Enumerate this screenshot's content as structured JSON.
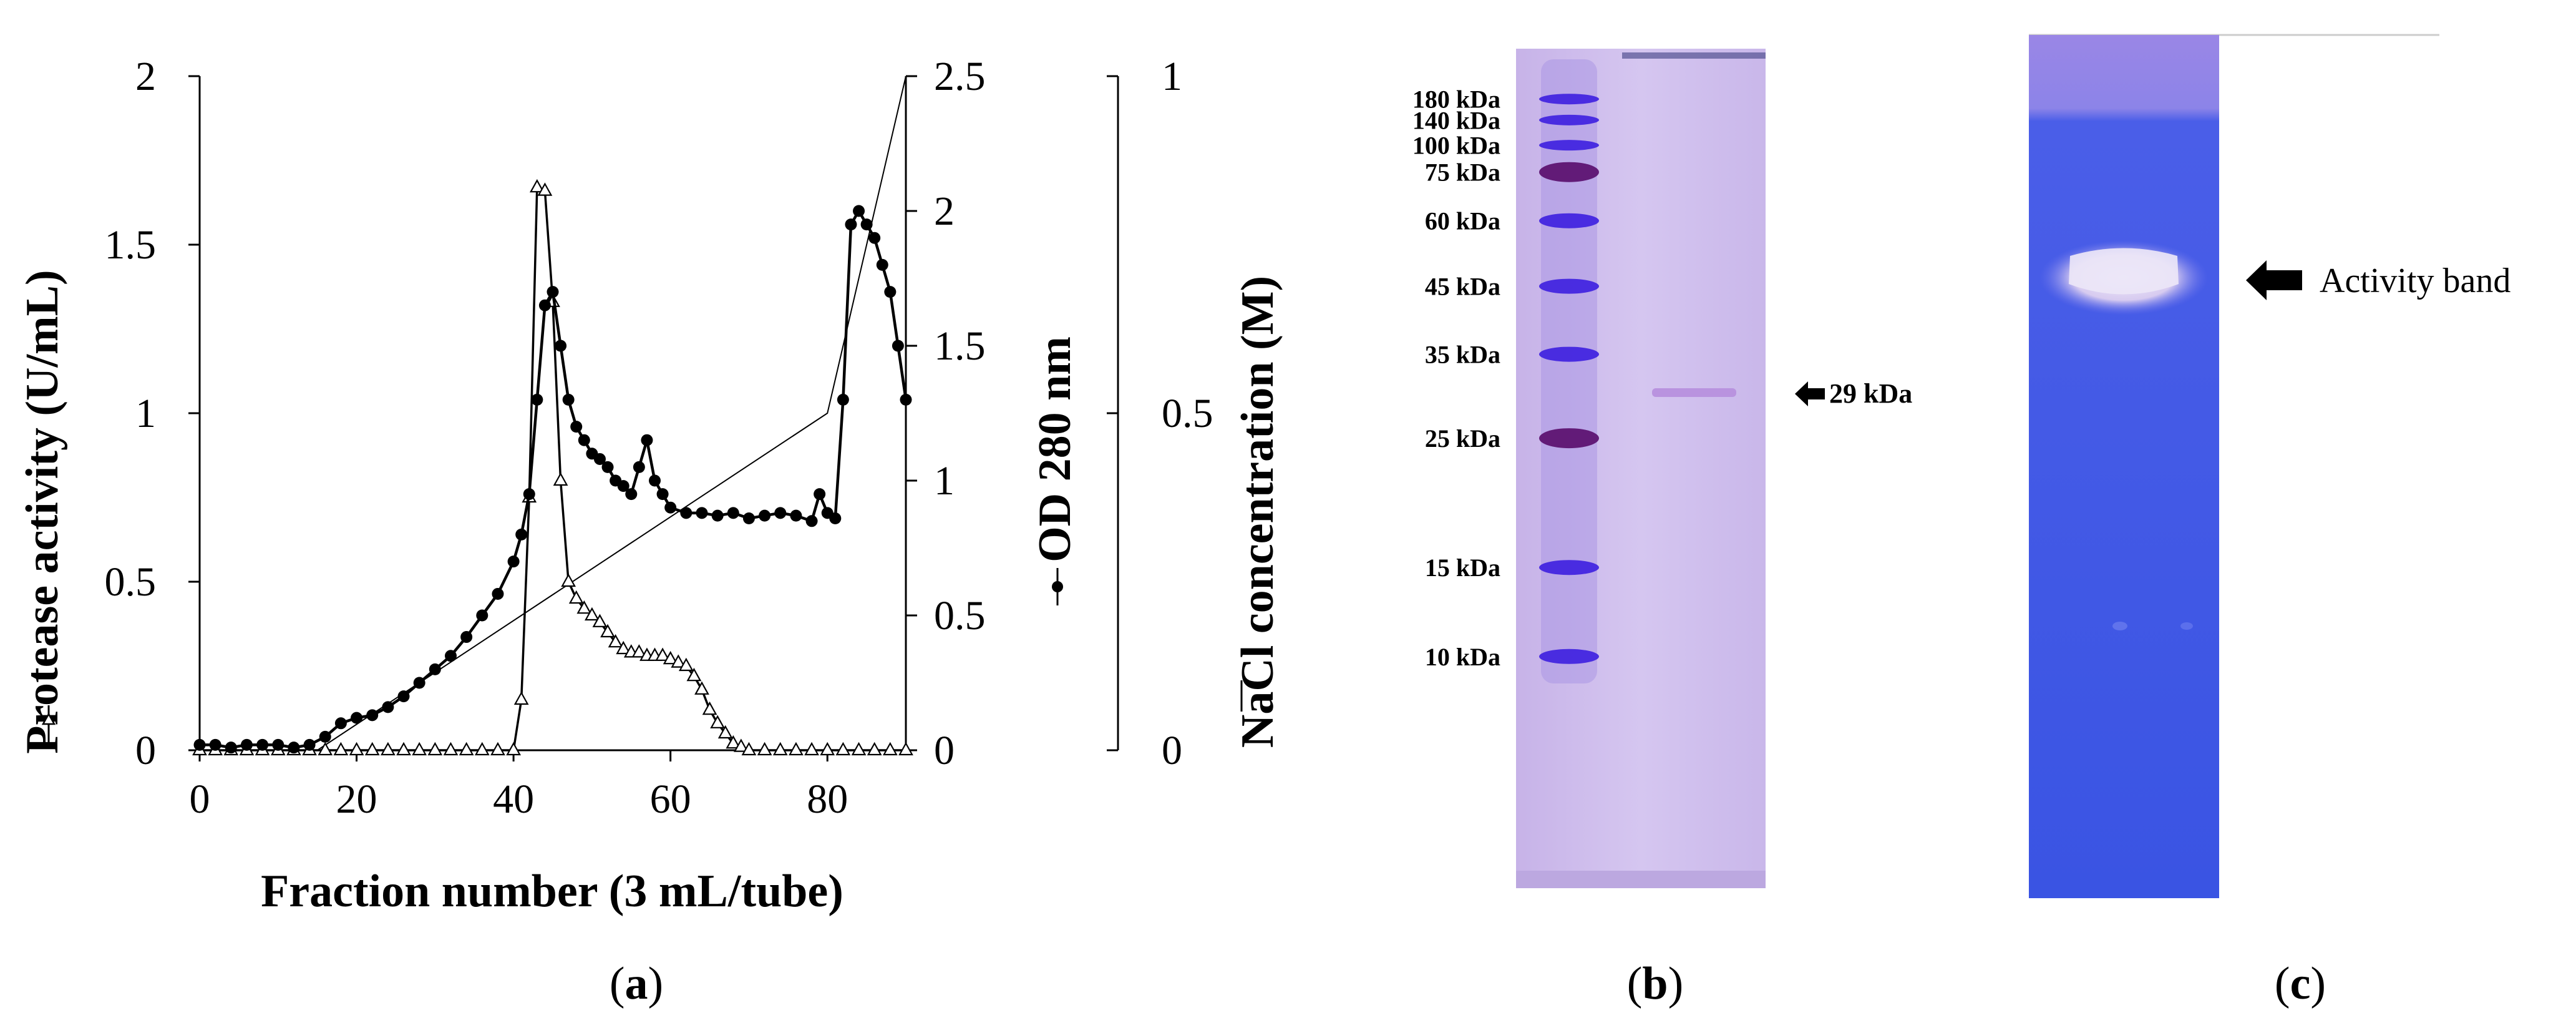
{
  "panels": {
    "a": "a",
    "b": "b",
    "c": "c"
  },
  "chart_data": {
    "type": "line",
    "xlabel": "Fraction number (3 mL/tube)",
    "x_ticks": [
      "0",
      "20",
      "40",
      "60",
      "80"
    ],
    "xlim": [
      0,
      90
    ],
    "axes": {
      "left": {
        "label": "Protease activity (U/mL)",
        "ticks": [
          "0",
          "0.5",
          "1",
          "1.5",
          "2"
        ],
        "lim": [
          0,
          2
        ]
      },
      "right1": {
        "label": "OD 280 nm",
        "ticks": [
          "0",
          "0.5",
          "1",
          "1.5",
          "2",
          "2.5"
        ],
        "lim": [
          0,
          2.5
        ]
      },
      "right2": {
        "label": "NaCl concentration (M)",
        "ticks": [
          "0",
          "0.5",
          "1"
        ],
        "lim": [
          0,
          1
        ]
      }
    },
    "series": [
      {
        "name": "Protease activity (U/mL)",
        "axis": "left",
        "marker": "open-triangle",
        "x": [
          0,
          2,
          4,
          6,
          8,
          10,
          12,
          14,
          16,
          18,
          20,
          22,
          24,
          26,
          28,
          30,
          32,
          34,
          36,
          38,
          40,
          41,
          42,
          43,
          44,
          45,
          46,
          47,
          48,
          49,
          50,
          51,
          52,
          53,
          54,
          55,
          56,
          57,
          58,
          59,
          60,
          61,
          62,
          63,
          64,
          65,
          66,
          67,
          68,
          69,
          70,
          72,
          74,
          76,
          78,
          80,
          82,
          84,
          86,
          88,
          90
        ],
        "y": [
          0,
          0,
          0,
          0,
          0,
          0,
          0,
          0,
          0,
          0,
          0,
          0,
          0,
          0,
          0,
          0,
          0,
          0,
          0,
          0,
          0,
          0.15,
          0.75,
          1.67,
          1.66,
          1.33,
          0.8,
          0.5,
          0.45,
          0.42,
          0.4,
          0.38,
          0.35,
          0.32,
          0.3,
          0.29,
          0.29,
          0.28,
          0.28,
          0.28,
          0.27,
          0.26,
          0.25,
          0.22,
          0.18,
          0.12,
          0.08,
          0.05,
          0.02,
          0.01,
          0,
          0,
          0,
          0,
          0,
          0,
          0,
          0,
          0,
          0,
          0
        ]
      },
      {
        "name": "OD 280 nm",
        "axis": "right1",
        "marker": "filled-circle",
        "x": [
          0,
          2,
          4,
          6,
          8,
          10,
          12,
          14,
          16,
          18,
          20,
          22,
          24,
          26,
          28,
          30,
          32,
          34,
          36,
          38,
          40,
          41,
          42,
          43,
          44,
          45,
          46,
          47,
          48,
          49,
          50,
          51,
          52,
          53,
          54,
          55,
          56,
          57,
          58,
          59,
          60,
          62,
          64,
          66,
          68,
          70,
          72,
          74,
          76,
          78,
          79,
          80,
          81,
          82,
          83,
          84,
          85,
          86,
          87,
          88,
          89,
          90
        ],
        "y": [
          0.02,
          0.02,
          0.01,
          0.02,
          0.02,
          0.02,
          0.01,
          0.02,
          0.05,
          0.1,
          0.12,
          0.13,
          0.16,
          0.2,
          0.25,
          0.3,
          0.35,
          0.42,
          0.5,
          0.58,
          0.7,
          0.8,
          0.95,
          1.3,
          1.65,
          1.7,
          1.5,
          1.3,
          1.2,
          1.15,
          1.1,
          1.08,
          1.05,
          1.0,
          0.98,
          0.95,
          1.05,
          1.15,
          1.0,
          0.95,
          0.9,
          0.88,
          0.88,
          0.87,
          0.88,
          0.86,
          0.87,
          0.88,
          0.87,
          0.85,
          0.95,
          0.88,
          0.86,
          1.3,
          1.95,
          2.0,
          1.95,
          1.9,
          1.8,
          1.7,
          1.5,
          1.3
        ]
      },
      {
        "name": "NaCl concentration (M)",
        "axis": "right2",
        "marker": "none",
        "x": [
          15,
          80,
          90
        ],
        "y": [
          0,
          0.5,
          1.0
        ]
      }
    ]
  },
  "gel_b": {
    "markers": [
      {
        "label": "180 kDa",
        "pos": 0.06
      },
      {
        "label": "140 kDa",
        "pos": 0.085
      },
      {
        "label": "100 kDa",
        "pos": 0.115
      },
      {
        "label": "75 kDa",
        "pos": 0.147
      },
      {
        "label": "60 kDa",
        "pos": 0.205
      },
      {
        "label": "45 kDa",
        "pos": 0.283
      },
      {
        "label": "35 kDa",
        "pos": 0.364
      },
      {
        "label": "25 kDa",
        "pos": 0.464
      },
      {
        "label": "15 kDa",
        "pos": 0.618
      },
      {
        "label": "10 kDa",
        "pos": 0.724
      }
    ],
    "sample_band": "29 kDa",
    "colors": {
      "gel": "#cdb8ea",
      "ladder": "#3f22e0",
      "ladder_dark": "#5a0f6e"
    }
  },
  "gel_c": {
    "annotation": "Activity band",
    "colors": {
      "gel": "#3f56e6",
      "top": "#9a86e6",
      "band": "#e7dff3"
    }
  }
}
